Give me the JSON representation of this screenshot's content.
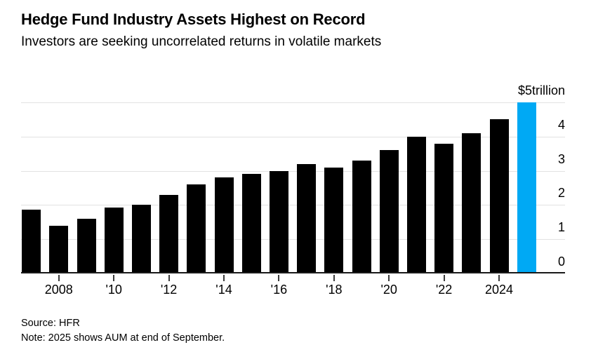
{
  "page": {
    "background": "#ffffff"
  },
  "header": {
    "title": "Hedge Fund Industry Assets Highest on Record",
    "subtitle": "Investors are seeking uncorrelated returns in volatile markets"
  },
  "footer": {
    "source": "Source: HFR",
    "note": "Note: 2025 shows AUM at end of September."
  },
  "colors": {
    "bar": "#000000",
    "highlight_bar": "#00a9f4",
    "gridline": "#e2e2e2",
    "baseline": "#191919",
    "tick": "#3c3c3c",
    "text": "#000000"
  },
  "chart_data": {
    "type": "bar",
    "title": "Hedge Fund Industry Assets Highest on Record",
    "subtitle": "Investors are seeking uncorrelated returns in volatile markets",
    "unit": "USD trillions",
    "categories": [
      "2007",
      "2008",
      "2009",
      "2010",
      "2011",
      "2012",
      "2013",
      "2014",
      "2015",
      "2016",
      "2017",
      "2018",
      "2019",
      "2020",
      "2021",
      "2022",
      "2023",
      "2024",
      "2025"
    ],
    "values": [
      1.87,
      1.4,
      1.6,
      1.92,
      2.0,
      2.3,
      2.6,
      2.8,
      2.9,
      3.0,
      3.2,
      3.1,
      3.3,
      3.6,
      4.0,
      3.8,
      4.1,
      4.5,
      5.0
    ],
    "highlight_index": 18,
    "highlight_category": "2025",
    "ylim": [
      0,
      5
    ],
    "grid": "horizontal",
    "axis_side": "right",
    "legend": "none",
    "y_ticks": [
      {
        "value": 5,
        "label": "$5trillion"
      },
      {
        "value": 4,
        "label": "4"
      },
      {
        "value": 3,
        "label": "3"
      },
      {
        "value": 2,
        "label": "2"
      },
      {
        "value": 1,
        "label": "1"
      },
      {
        "value": 0,
        "label": "0"
      }
    ],
    "x_ticks": [
      {
        "index": 1,
        "label": "2008"
      },
      {
        "index": 3,
        "label": "'10"
      },
      {
        "index": 5,
        "label": "'12"
      },
      {
        "index": 7,
        "label": "'14"
      },
      {
        "index": 9,
        "label": "'16"
      },
      {
        "index": 11,
        "label": "'18"
      },
      {
        "index": 13,
        "label": "'20"
      },
      {
        "index": 15,
        "label": "'22"
      },
      {
        "index": 17,
        "label": "2024"
      }
    ]
  }
}
